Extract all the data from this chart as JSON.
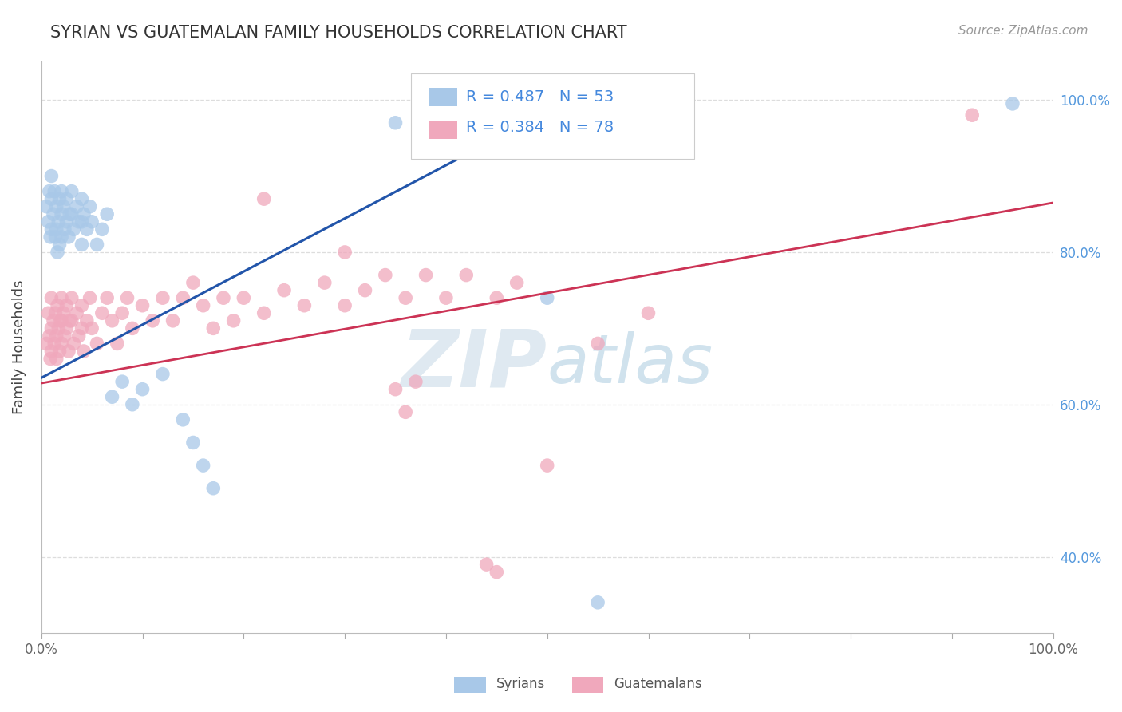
{
  "title": "SYRIAN VS GUATEMALAN FAMILY HOUSEHOLDS CORRELATION CHART",
  "source_text": "Source: ZipAtlas.com",
  "ylabel": "Family Households",
  "xlim": [
    0,
    1
  ],
  "ylim": [
    0.3,
    1.05
  ],
  "legend_r_syrian": "R = 0.487",
  "legend_n_syrian": "N = 53",
  "legend_r_guatemalan": "R = 0.384",
  "legend_n_guatemalan": "N = 78",
  "syrian_color": "#a8c8e8",
  "guatemalan_color": "#f0a8bc",
  "syrian_line_color": "#2255aa",
  "guatemalan_line_color": "#cc3355",
  "legend_text_color": "#4488dd",
  "watermark_color": "#ccdded",
  "background_color": "#ffffff",
  "grid_color": "#dddddd",
  "tick_color": "#aaaaaa",
  "right_tick_color": "#5599dd",
  "syrian_line": [
    [
      0.0,
      0.635
    ],
    [
      0.53,
      1.005
    ]
  ],
  "guatemalan_line": [
    [
      0.0,
      0.628
    ],
    [
      1.0,
      0.865
    ]
  ],
  "syrian_points": [
    [
      0.005,
      0.86
    ],
    [
      0.007,
      0.84
    ],
    [
      0.008,
      0.88
    ],
    [
      0.009,
      0.82
    ],
    [
      0.01,
      0.9
    ],
    [
      0.01,
      0.87
    ],
    [
      0.01,
      0.83
    ],
    [
      0.012,
      0.85
    ],
    [
      0.013,
      0.88
    ],
    [
      0.014,
      0.82
    ],
    [
      0.015,
      0.86
    ],
    [
      0.015,
      0.83
    ],
    [
      0.016,
      0.8
    ],
    [
      0.017,
      0.84
    ],
    [
      0.018,
      0.87
    ],
    [
      0.018,
      0.81
    ],
    [
      0.02,
      0.88
    ],
    [
      0.02,
      0.85
    ],
    [
      0.02,
      0.82
    ],
    [
      0.022,
      0.86
    ],
    [
      0.023,
      0.83
    ],
    [
      0.025,
      0.87
    ],
    [
      0.025,
      0.84
    ],
    [
      0.027,
      0.82
    ],
    [
      0.028,
      0.85
    ],
    [
      0.03,
      0.88
    ],
    [
      0.03,
      0.85
    ],
    [
      0.032,
      0.83
    ],
    [
      0.035,
      0.86
    ],
    [
      0.037,
      0.84
    ],
    [
      0.04,
      0.87
    ],
    [
      0.04,
      0.84
    ],
    [
      0.04,
      0.81
    ],
    [
      0.042,
      0.85
    ],
    [
      0.045,
      0.83
    ],
    [
      0.048,
      0.86
    ],
    [
      0.05,
      0.84
    ],
    [
      0.055,
      0.81
    ],
    [
      0.06,
      0.83
    ],
    [
      0.065,
      0.85
    ],
    [
      0.07,
      0.61
    ],
    [
      0.08,
      0.63
    ],
    [
      0.09,
      0.6
    ],
    [
      0.1,
      0.62
    ],
    [
      0.12,
      0.64
    ],
    [
      0.14,
      0.58
    ],
    [
      0.15,
      0.55
    ],
    [
      0.16,
      0.52
    ],
    [
      0.17,
      0.49
    ],
    [
      0.35,
      0.97
    ],
    [
      0.5,
      0.74
    ],
    [
      0.55,
      0.34
    ],
    [
      0.96,
      0.995
    ]
  ],
  "guatemalan_points": [
    [
      0.005,
      0.68
    ],
    [
      0.007,
      0.72
    ],
    [
      0.008,
      0.69
    ],
    [
      0.009,
      0.66
    ],
    [
      0.01,
      0.74
    ],
    [
      0.01,
      0.7
    ],
    [
      0.01,
      0.67
    ],
    [
      0.012,
      0.71
    ],
    [
      0.013,
      0.68
    ],
    [
      0.014,
      0.72
    ],
    [
      0.015,
      0.69
    ],
    [
      0.015,
      0.66
    ],
    [
      0.016,
      0.73
    ],
    [
      0.017,
      0.7
    ],
    [
      0.018,
      0.67
    ],
    [
      0.019,
      0.71
    ],
    [
      0.02,
      0.74
    ],
    [
      0.02,
      0.71
    ],
    [
      0.02,
      0.68
    ],
    [
      0.022,
      0.72
    ],
    [
      0.023,
      0.69
    ],
    [
      0.025,
      0.73
    ],
    [
      0.025,
      0.7
    ],
    [
      0.027,
      0.67
    ],
    [
      0.028,
      0.71
    ],
    [
      0.03,
      0.74
    ],
    [
      0.03,
      0.71
    ],
    [
      0.032,
      0.68
    ],
    [
      0.035,
      0.72
    ],
    [
      0.037,
      0.69
    ],
    [
      0.04,
      0.73
    ],
    [
      0.04,
      0.7
    ],
    [
      0.042,
      0.67
    ],
    [
      0.045,
      0.71
    ],
    [
      0.048,
      0.74
    ],
    [
      0.05,
      0.7
    ],
    [
      0.055,
      0.68
    ],
    [
      0.06,
      0.72
    ],
    [
      0.065,
      0.74
    ],
    [
      0.07,
      0.71
    ],
    [
      0.075,
      0.68
    ],
    [
      0.08,
      0.72
    ],
    [
      0.085,
      0.74
    ],
    [
      0.09,
      0.7
    ],
    [
      0.1,
      0.73
    ],
    [
      0.11,
      0.71
    ],
    [
      0.12,
      0.74
    ],
    [
      0.13,
      0.71
    ],
    [
      0.14,
      0.74
    ],
    [
      0.15,
      0.76
    ],
    [
      0.16,
      0.73
    ],
    [
      0.17,
      0.7
    ],
    [
      0.18,
      0.74
    ],
    [
      0.19,
      0.71
    ],
    [
      0.2,
      0.74
    ],
    [
      0.22,
      0.72
    ],
    [
      0.24,
      0.75
    ],
    [
      0.26,
      0.73
    ],
    [
      0.28,
      0.76
    ],
    [
      0.3,
      0.73
    ],
    [
      0.32,
      0.75
    ],
    [
      0.34,
      0.77
    ],
    [
      0.36,
      0.74
    ],
    [
      0.38,
      0.77
    ],
    [
      0.4,
      0.74
    ],
    [
      0.42,
      0.77
    ],
    [
      0.45,
      0.74
    ],
    [
      0.47,
      0.76
    ],
    [
      0.22,
      0.87
    ],
    [
      0.3,
      0.8
    ],
    [
      0.35,
      0.62
    ],
    [
      0.37,
      0.63
    ],
    [
      0.36,
      0.59
    ],
    [
      0.44,
      0.39
    ],
    [
      0.45,
      0.38
    ],
    [
      0.5,
      0.52
    ],
    [
      0.55,
      0.68
    ],
    [
      0.6,
      0.72
    ],
    [
      0.92,
      0.98
    ]
  ]
}
